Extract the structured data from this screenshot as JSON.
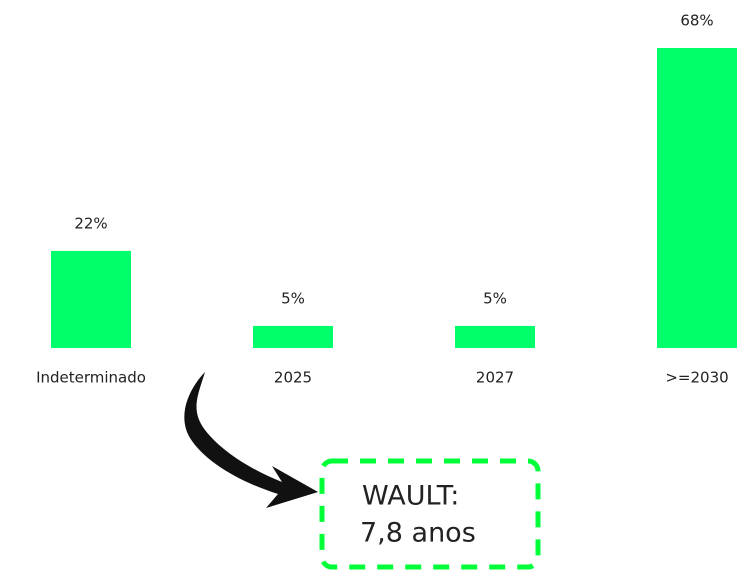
{
  "chart_data": {
    "type": "bar",
    "categories": [
      "Indeterminado",
      "2025",
      "2027",
      ">=2030"
    ],
    "values": [
      22,
      5,
      5,
      68
    ],
    "value_labels": [
      "22%",
      "5%",
      "5%",
      "68%"
    ],
    "color": "#00ff6a",
    "annotation": {
      "title": "WAULT:",
      "text": "7,8 anos"
    }
  }
}
